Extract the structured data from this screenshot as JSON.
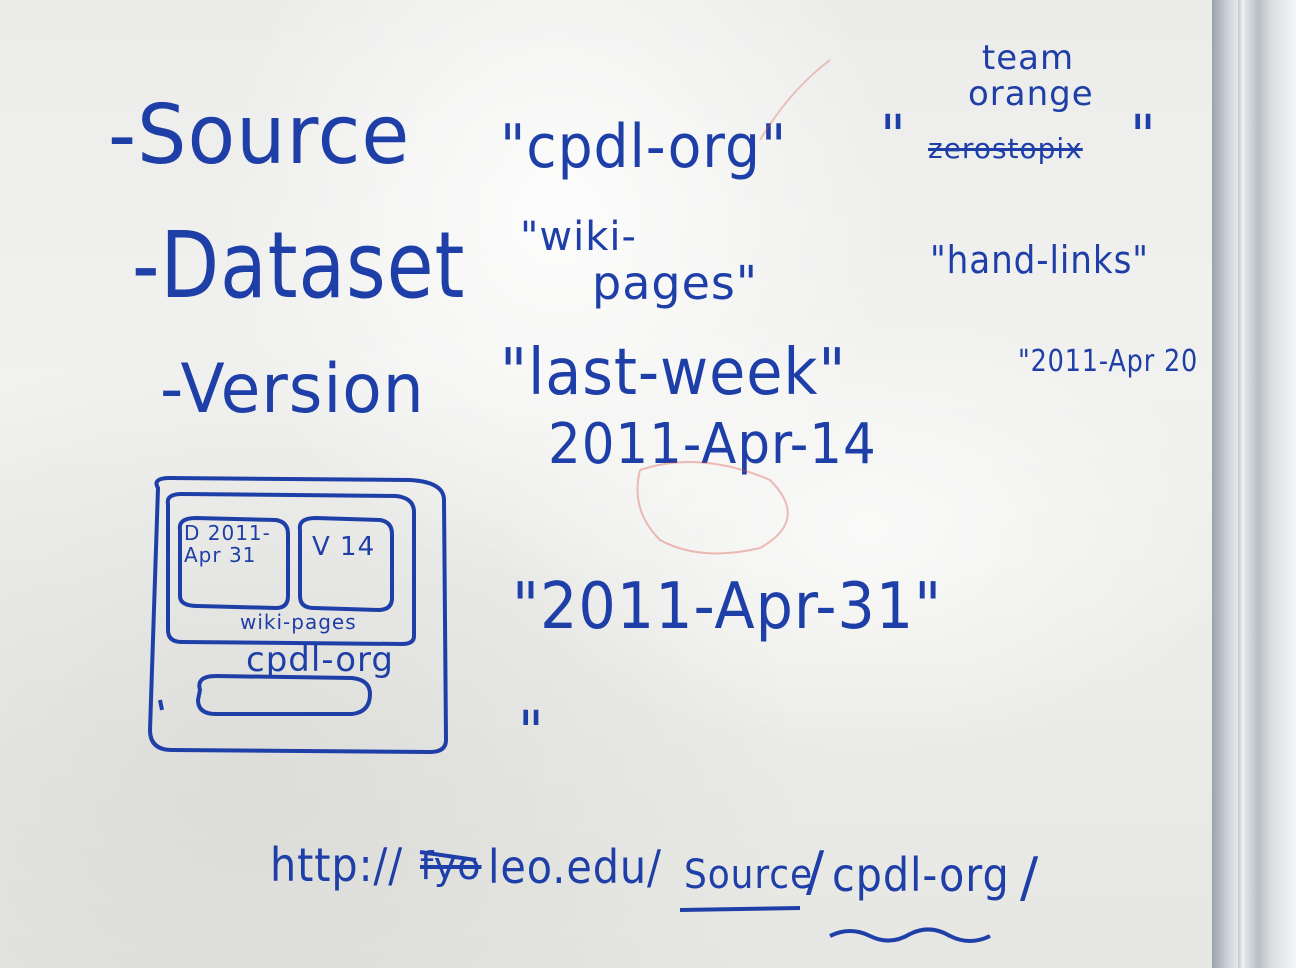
{
  "whiteboard": {
    "line_source": {
      "label": "-Source",
      "value1": "\"cpdl-org\"",
      "value2_quote_open": "\"",
      "value2_struck": "zerostopix",
      "value2_quote_close": "\"",
      "value2_above": "team orange"
    },
    "line_dataset": {
      "label": "-Dataset",
      "value1_top": "\"wiki-",
      "value1_bottom": "pages\"",
      "value2": "\"hand-links\""
    },
    "line_version": {
      "label": "-Version",
      "value1": "\"last-week\"",
      "value1_below": "2011-Apr-14",
      "value2": "\"2011-Apr 20"
    },
    "diagram": {
      "dataset_box": "D 2011- Apr 31",
      "version_box": "V 14",
      "dataset_label": "wiki-pages",
      "source_label": "cpdl-org"
    },
    "date_quote": "\"2011-Apr-31\"",
    "empty_quote": "\"",
    "url": {
      "prefix": "http://",
      "struck": "fyo",
      "host": "leo.edu/",
      "seg1": "Source",
      "sep": "/",
      "seg2": "cpdl-org",
      "end": "/"
    }
  },
  "colors": {
    "ink": "#1f3fa8",
    "red_ink": "#d9483b",
    "board": "#efefec",
    "frame": "#c9d0d6"
  }
}
